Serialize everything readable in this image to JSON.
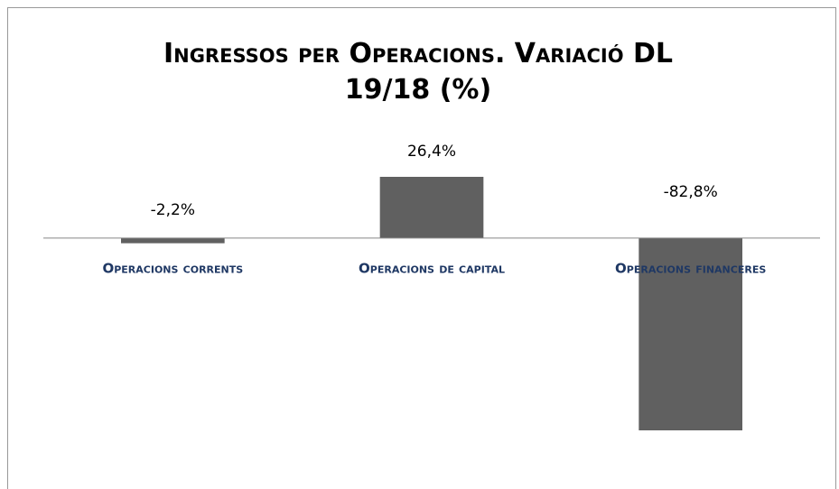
{
  "chart_data": {
    "type": "bar",
    "title": "Ingressos per Operacions. Variació DL 19/18 (%)",
    "categories": [
      "Operacions corrents",
      "Operacions de capital",
      "Operacions financeres"
    ],
    "values": [
      -2.2,
      26.4,
      -82.8
    ],
    "value_labels": [
      "-2,2%",
      "26,4%",
      "-82,8%"
    ],
    "color": "#606060"
  }
}
